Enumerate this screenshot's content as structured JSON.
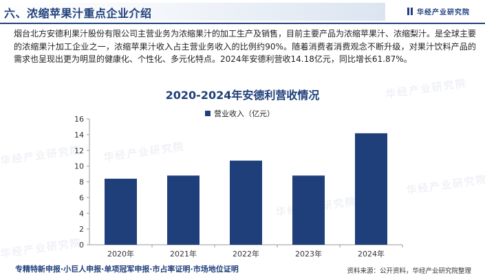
{
  "header": {
    "title": "六、浓缩苹果汁重点企业介绍",
    "brand": "华经产业研究院"
  },
  "paragraph": "烟台北方安德利果汁股份有限公司主营业务为浓缩果汁的加工生产及销售，目前主要产品为浓缩苹果汁、浓缩梨汁。是全球主要的浓缩果汁加工企业之一，浓缩苹果汁收入占主营业务收入的比例约90%。随着消费者消费观念不断升级，对果汁饮料产品的需求也呈现出更为明显的健康化、个性化、多元化特点。2024年安德利营收14.18亿元，同比增长61.87%。",
  "chart_data": {
    "type": "bar",
    "title": "2020-2024年安德利营收情况",
    "categories": [
      "2020年",
      "2021年",
      "2022年",
      "2023年",
      "2024年"
    ],
    "series": [
      {
        "name": "营业收入（亿元）",
        "values": [
          8.4,
          8.8,
          10.7,
          8.8,
          14.18
        ]
      }
    ],
    "ylim": [
      0,
      16
    ],
    "yticks": [
      0,
      2,
      4,
      6,
      8,
      10,
      12,
      14,
      16
    ],
    "legend": "top-center",
    "grid": false,
    "bar_color": "#1f3f7a"
  },
  "watermark": "华经产业研究院",
  "footer": {
    "left": "专精特新申报·小巨人申报·单项冠军申报·市占率证明·市场地位证明",
    "right": "资料来源：公开资料，华经产业研究院整理"
  }
}
